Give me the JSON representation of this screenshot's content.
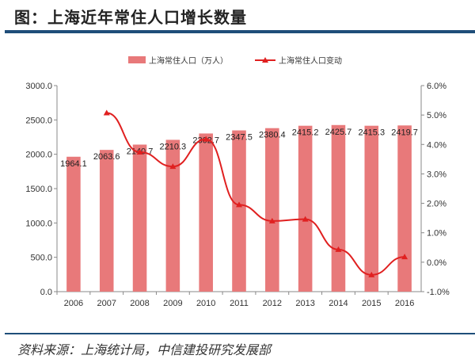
{
  "title": "图：上海近年常住人口增长数量",
  "source": "资料来源：上海统计局，中信建投研究发展部",
  "colors": {
    "bar": "#e8797a",
    "line": "#e02020",
    "rule": "#1f4e79"
  },
  "chart_data": {
    "type": "bar+line",
    "categories": [
      "2006",
      "2007",
      "2008",
      "2009",
      "2010",
      "2011",
      "2012",
      "2013",
      "2014",
      "2015",
      "2016"
    ],
    "series": [
      {
        "name": "上海常住人口（万人）",
        "type": "bar",
        "axis": "left",
        "values": [
          1964.1,
          2063.6,
          2140.7,
          2210.3,
          2302.7,
          2347.5,
          2380.4,
          2415.2,
          2425.7,
          2415.3,
          2419.7
        ],
        "labels": [
          "1964.1",
          "2063.6",
          "2140.7",
          "2210.3",
          "2302.7",
          "2347.5",
          "2380.4",
          "2415.2",
          "2425.7",
          "2415.3",
          "2419.7"
        ]
      },
      {
        "name": "上海常住人口变动",
        "type": "line",
        "axis": "right",
        "values": [
          null,
          5.07,
          3.74,
          3.25,
          4.18,
          1.95,
          1.4,
          1.46,
          0.43,
          -0.43,
          0.18
        ]
      }
    ],
    "left_axis": {
      "ylim": [
        0,
        3000
      ],
      "ticks": [
        "0.0",
        "500.0",
        "1000.0",
        "1500.0",
        "2000.0",
        "2500.0",
        "3000.0"
      ]
    },
    "right_axis": {
      "ylim": [
        -1,
        6
      ],
      "ticks": [
        "-1.0%",
        "0.0%",
        "1.0%",
        "2.0%",
        "3.0%",
        "4.0%",
        "5.0%",
        "6.0%"
      ]
    },
    "legend": "top"
  }
}
